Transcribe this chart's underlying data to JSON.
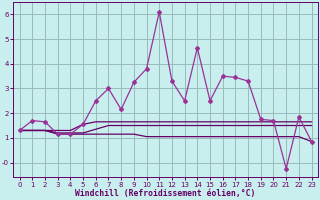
{
  "xlabel": "Windchill (Refroidissement éolien,°C)",
  "bg_color": "#c8eeee",
  "grid_color": "#99bbbb",
  "line_color": "#993399",
  "line_color2": "#660066",
  "x": [
    0,
    1,
    2,
    3,
    4,
    5,
    6,
    7,
    8,
    9,
    10,
    11,
    12,
    13,
    14,
    15,
    16,
    17,
    18,
    19,
    20,
    21,
    22,
    23
  ],
  "y_main": [
    1.3,
    1.7,
    1.65,
    1.15,
    1.15,
    1.55,
    2.5,
    3.0,
    2.15,
    3.25,
    3.8,
    6.1,
    3.3,
    2.5,
    4.65,
    2.5,
    3.5,
    3.45,
    3.3,
    1.75,
    1.7,
    -0.25,
    1.85,
    0.85
  ],
  "y_upper_flat": [
    1.3,
    1.3,
    1.3,
    1.3,
    1.3,
    1.55,
    1.65,
    1.65,
    1.65,
    1.65,
    1.65,
    1.65,
    1.65,
    1.65,
    1.65,
    1.65,
    1.65,
    1.65,
    1.65,
    1.65,
    1.65,
    1.65,
    1.65,
    1.65
  ],
  "y_mid_flat": [
    1.3,
    1.3,
    1.3,
    1.2,
    1.2,
    1.2,
    1.35,
    1.5,
    1.5,
    1.5,
    1.5,
    1.5,
    1.5,
    1.5,
    1.5,
    1.5,
    1.5,
    1.5,
    1.5,
    1.5,
    1.5,
    1.5,
    1.5,
    1.5
  ],
  "y_lower_flat": [
    1.3,
    1.3,
    1.3,
    1.15,
    1.15,
    1.15,
    1.15,
    1.15,
    1.15,
    1.15,
    1.05,
    1.05,
    1.05,
    1.05,
    1.05,
    1.05,
    1.05,
    1.05,
    1.05,
    1.05,
    1.05,
    1.05,
    1.05,
    0.85
  ],
  "xlim": [
    -0.5,
    23.5
  ],
  "ylim": [
    -0.6,
    6.5
  ],
  "yticks": [
    0,
    1,
    2,
    3,
    4,
    5,
    6
  ],
  "xticks": [
    0,
    1,
    2,
    3,
    4,
    5,
    6,
    7,
    8,
    9,
    10,
    11,
    12,
    13,
    14,
    15,
    16,
    17,
    18,
    19,
    20,
    21,
    22,
    23
  ]
}
